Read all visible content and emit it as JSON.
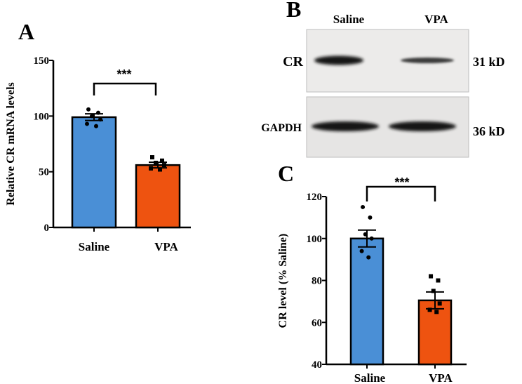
{
  "panels": {
    "a": "A",
    "b": "B",
    "c": "C"
  },
  "colors": {
    "saline": "#4a8fd6",
    "vpa": "#ee5310"
  },
  "chart_data": [
    {
      "panel": "A",
      "type": "bar",
      "categories": [
        "Saline",
        "VPA"
      ],
      "values": [
        99,
        56
      ],
      "errors": [
        3,
        2.5
      ],
      "points": [
        [
          106,
          103,
          100,
          97,
          93,
          91
        ],
        [
          63,
          60,
          58,
          56,
          53,
          52
        ]
      ],
      "ylabel": "Relative CR mRNA levels",
      "ylim": [
        0,
        150
      ],
      "yticks": [
        0,
        50,
        100,
        150
      ],
      "significance": "***"
    },
    {
      "panel": "C",
      "type": "bar",
      "categories": [
        "Saline",
        "VPA"
      ],
      "values": [
        100,
        70.5
      ],
      "errors": [
        4,
        4
      ],
      "points": [
        [
          115,
          110,
          102,
          100,
          94,
          91
        ],
        [
          82,
          80,
          75,
          69,
          66,
          65
        ]
      ],
      "ylabel": "CR level (% Saline)",
      "ylim": [
        40,
        120
      ],
      "yticks": [
        40,
        60,
        80,
        100,
        120
      ],
      "significance": "***"
    }
  ],
  "blot": {
    "lanes": [
      "Saline",
      "VPA"
    ],
    "rows": [
      {
        "label": "CR",
        "size": "31 kD"
      },
      {
        "label": "GAPDH",
        "size": "36 kD"
      }
    ]
  }
}
